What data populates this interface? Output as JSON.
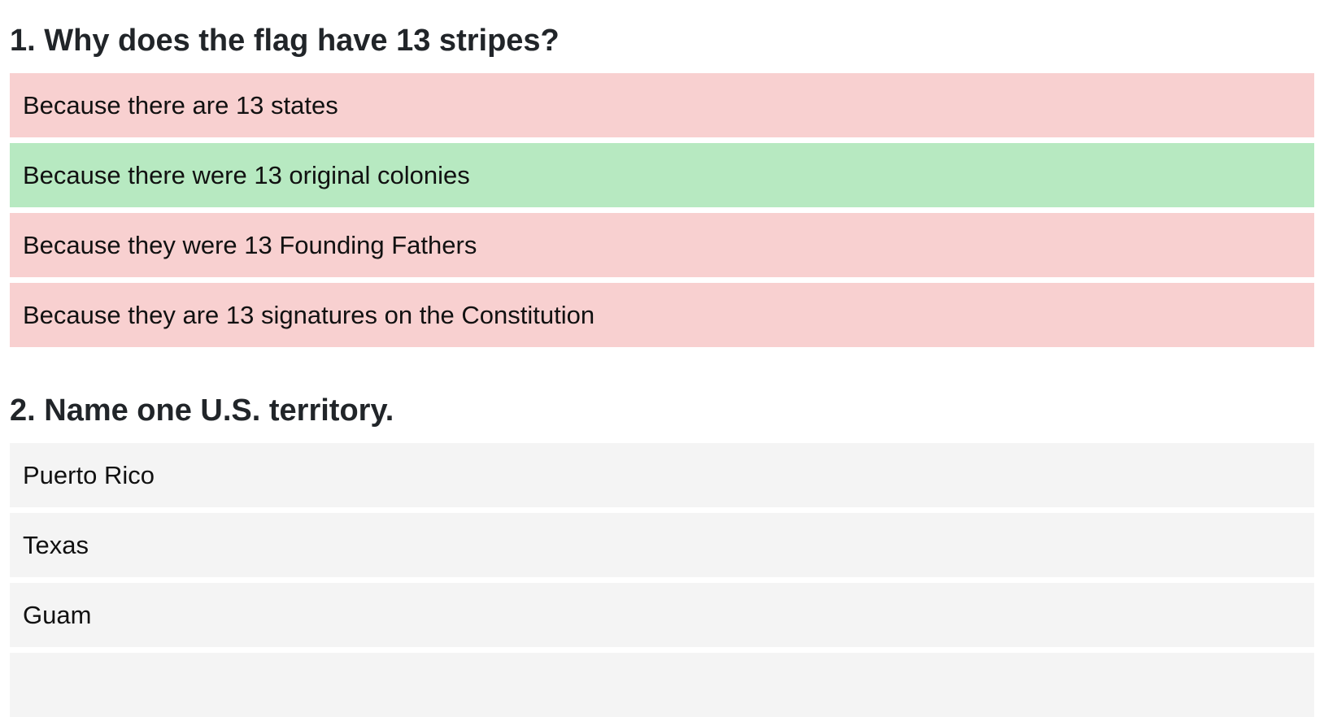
{
  "questions": [
    {
      "title": "1. Why does the flag have 13 stripes?",
      "answers": [
        {
          "label": "Because there are 13 states",
          "state": "wrong"
        },
        {
          "label": "Because there were 13 original colonies",
          "state": "correct"
        },
        {
          "label": "Because they were 13 Founding Fathers",
          "state": "wrong"
        },
        {
          "label": "Because they are 13 signatures on the Constitution",
          "state": "wrong"
        }
      ]
    },
    {
      "title": "2. Name one U.S. territory.",
      "answers": [
        {
          "label": "Puerto Rico",
          "state": "neutral"
        },
        {
          "label": "Texas",
          "state": "neutral"
        },
        {
          "label": "Guam",
          "state": "neutral"
        },
        {
          "label": "",
          "state": "neutral"
        }
      ]
    }
  ],
  "colors": {
    "correct": "#b7e9c1",
    "wrong": "#f8d0d0",
    "neutral": "#f4f4f4",
    "heading": "#212529"
  }
}
